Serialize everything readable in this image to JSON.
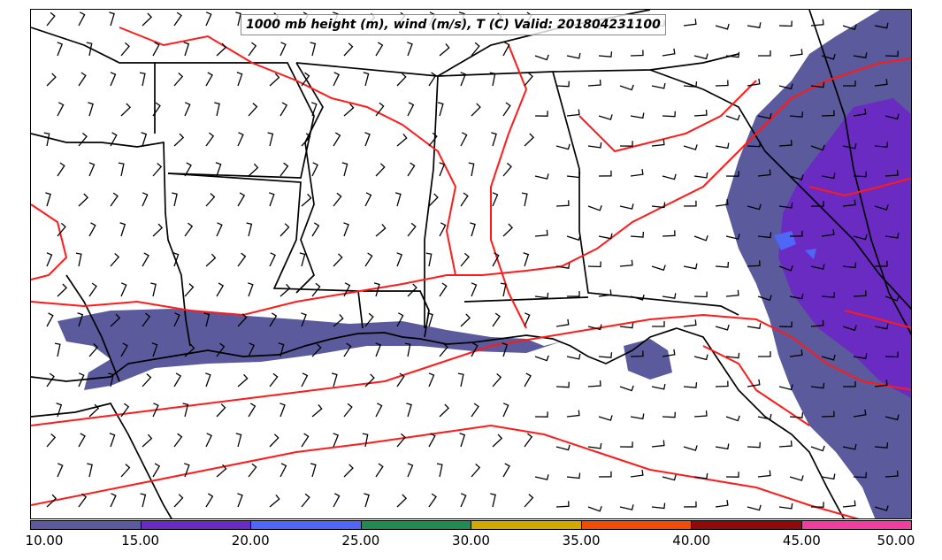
{
  "title": "1000 mb height (m), wind (m/s), T (C) Valid: 201804231100",
  "colorbar": {
    "colors": [
      "#5a5a9c",
      "#6a2bc2",
      "#4f66f7",
      "#228b4f",
      "#d1a900",
      "#f04c08",
      "#8f0a0a",
      "#ef3ea0"
    ],
    "labels": [
      "10.00",
      "15.00",
      "20.00",
      "25.00",
      "30.00",
      "35.00",
      "40.00",
      "45.00",
      "50.00"
    ]
  },
  "style": {
    "isotherm_color": "#ff1a1a",
    "boundary_color": "#000000",
    "barb_color": "#000000"
  }
}
